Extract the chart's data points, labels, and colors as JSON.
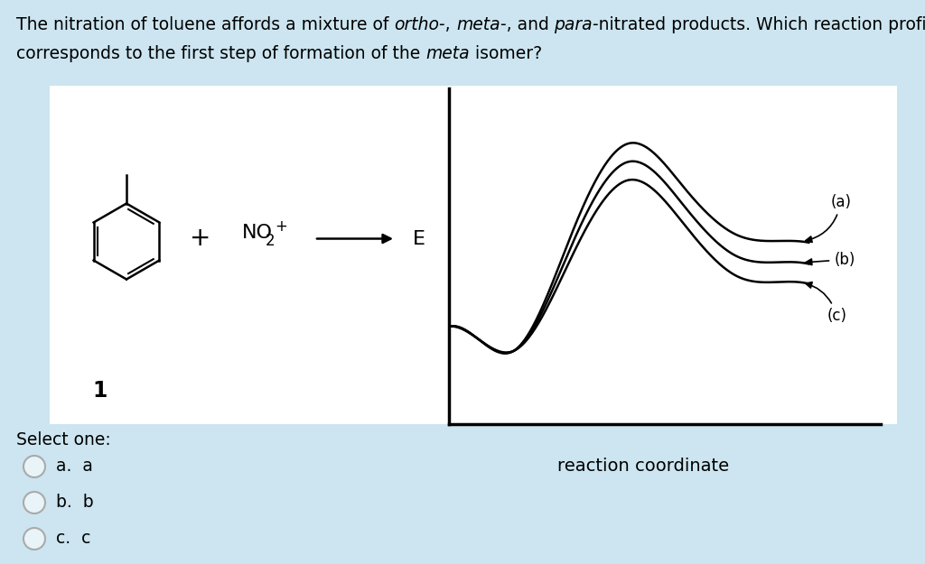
{
  "bg_color": "#cce5f0",
  "panel_color": "#ffffff",
  "curve_color": "#000000",
  "ylabel": "E",
  "xlabel": "reaction coordinate",
  "label_a": "(a)",
  "label_b": "(b)",
  "label_c": "(c)",
  "reactant_number": "1",
  "select_label": "Select one:",
  "options": [
    "a.  a",
    "b.  b",
    "c.  c"
  ],
  "title_line1_parts": [
    [
      "The nitration of toluene affords a mixture of ",
      false
    ],
    [
      "ortho",
      true
    ],
    [
      "-, ",
      false
    ],
    [
      "meta",
      true
    ],
    [
      "-, and ",
      false
    ],
    [
      "para",
      true
    ],
    [
      "-nitrated products. Which reaction profile",
      false
    ]
  ],
  "title_line2_parts": [
    [
      "corresponds to the first step of formation of the ",
      false
    ],
    [
      "meta",
      true
    ],
    [
      " isomer?",
      false
    ]
  ]
}
